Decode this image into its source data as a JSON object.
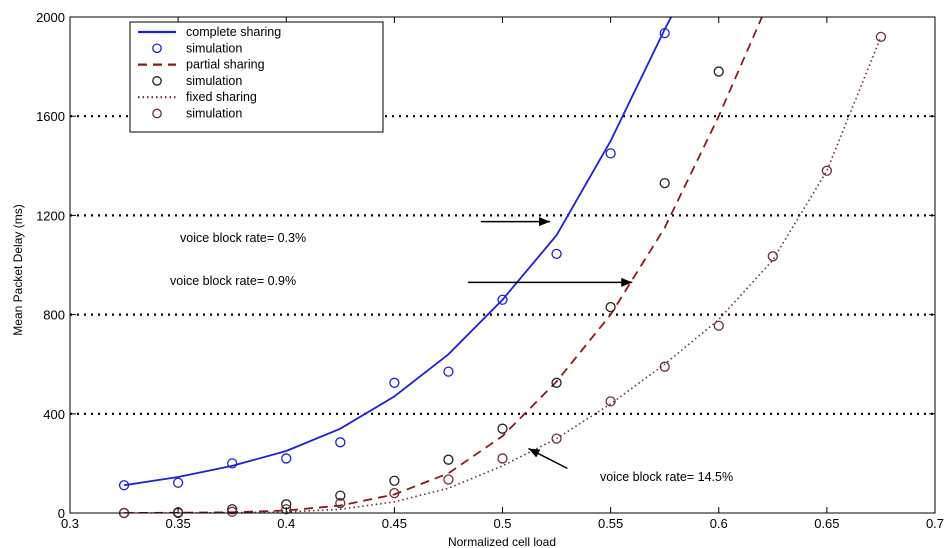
{
  "colors": {
    "complete": "#1f1fd6",
    "partial": "#8b1a1a",
    "fixed": "#6b2c3e",
    "sim_partial": "#222222",
    "grid": "#000000"
  },
  "chart_data": {
    "type": "line",
    "xlabel": "Normalized cell load",
    "ylabel": "Mean Packet Delay (ms)",
    "xlim": [
      0.3,
      0.7
    ],
    "ylim": [
      0,
      2000
    ],
    "xticks": [
      0.3,
      0.35,
      0.4,
      0.45,
      0.5,
      0.55,
      0.6,
      0.65,
      0.7
    ],
    "xtick_labels": [
      "0.3",
      "0.35",
      "0.4",
      "0.45",
      "0.5",
      "0.55",
      "0.6",
      "0.65",
      "0.7"
    ],
    "yticks": [
      0,
      400,
      800,
      1200,
      1600,
      2000
    ],
    "ytick_labels": [
      "0",
      "400",
      "800",
      "1200",
      "1600",
      "2000"
    ],
    "grid": "horizontal dotted",
    "legend_position": "top-left",
    "series": [
      {
        "name": "complete sharing",
        "kind": "line",
        "style": "solid",
        "color_key": "complete",
        "x": [
          0.325,
          0.35,
          0.375,
          0.4,
          0.425,
          0.45,
          0.475,
          0.5,
          0.525,
          0.55,
          0.575,
          0.578
        ],
        "y": [
          112,
          145,
          190,
          250,
          340,
          470,
          640,
          860,
          1120,
          1500,
          1950,
          2000
        ]
      },
      {
        "name": "simulation",
        "kind": "marker",
        "color_key": "complete",
        "x": [
          0.325,
          0.35,
          0.375,
          0.4,
          0.425,
          0.45,
          0.475,
          0.5,
          0.525,
          0.55,
          0.575
        ],
        "y": [
          112,
          122,
          200,
          220,
          285,
          525,
          570,
          860,
          1045,
          1450,
          1935
        ]
      },
      {
        "name": "partial sharing",
        "kind": "line",
        "style": "dashed",
        "color_key": "partial",
        "x": [
          0.325,
          0.35,
          0.375,
          0.4,
          0.425,
          0.45,
          0.475,
          0.5,
          0.525,
          0.55,
          0.575,
          0.6,
          0.62
        ],
        "y": [
          0,
          1,
          3,
          10,
          30,
          75,
          160,
          310,
          530,
          800,
          1150,
          1600,
          2000
        ]
      },
      {
        "name": "simulation",
        "kind": "marker",
        "color_key": "sim_partial",
        "x": [
          0.325,
          0.35,
          0.375,
          0.4,
          0.425,
          0.45,
          0.475,
          0.5,
          0.525,
          0.55,
          0.575,
          0.6
        ],
        "y": [
          0,
          3,
          15,
          35,
          70,
          130,
          215,
          340,
          525,
          830,
          1330,
          1780
        ]
      },
      {
        "name": "fixed sharing",
        "kind": "line",
        "style": "dotted",
        "color_key": "fixed",
        "x": [
          0.325,
          0.35,
          0.375,
          0.4,
          0.425,
          0.45,
          0.475,
          0.5,
          0.525,
          0.55,
          0.575,
          0.6,
          0.625,
          0.65,
          0.675
        ],
        "y": [
          0,
          0,
          1,
          4,
          15,
          45,
          100,
          190,
          300,
          440,
          600,
          780,
          1020,
          1380,
          1920
        ]
      },
      {
        "name": "simulation",
        "kind": "marker",
        "color_key": "fixed",
        "x": [
          0.325,
          0.35,
          0.375,
          0.4,
          0.425,
          0.45,
          0.475,
          0.5,
          0.525,
          0.55,
          0.575,
          0.6,
          0.625,
          0.65,
          0.675
        ],
        "y": [
          0,
          0,
          5,
          15,
          40,
          80,
          135,
          220,
          300,
          450,
          590,
          755,
          1035,
          1380,
          1920
        ]
      }
    ],
    "annotations": [
      {
        "text": "voice  block rate= 0.3%",
        "arrow": {
          "from": [
            0.49,
            1175
          ],
          "to": [
            0.522,
            1175
          ]
        }
      },
      {
        "text": "voice  block rate= 0.9%",
        "arrow": {
          "from": [
            0.484,
            930
          ],
          "to": [
            0.56,
            930
          ]
        }
      },
      {
        "text": "voice  block rate= 14.5%",
        "arrow": {
          "from": [
            0.53,
            180
          ],
          "to": [
            0.512,
            260
          ]
        }
      }
    ]
  }
}
